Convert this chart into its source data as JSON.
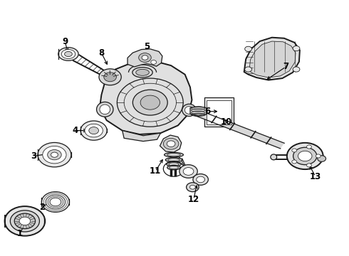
{
  "background": "#ffffff",
  "line_color": "#1a1a1a",
  "fig_width": 4.9,
  "fig_height": 3.6,
  "dpi": 100,
  "label_fontsize": 8.5,
  "lw_thick": 1.4,
  "lw_med": 0.9,
  "lw_thin": 0.55,
  "labels_info": [
    [
      1,
      0.055,
      0.085,
      0.075,
      0.135
    ],
    [
      2,
      0.12,
      0.19,
      0.148,
      0.215
    ],
    [
      3,
      0.095,
      0.39,
      0.145,
      0.4
    ],
    [
      4,
      0.215,
      0.49,
      0.255,
      0.49
    ],
    [
      5,
      0.42,
      0.82,
      0.42,
      0.76
    ],
    [
      6,
      0.595,
      0.565,
      0.63,
      0.565
    ],
    [
      7,
      0.82,
      0.74,
      0.76,
      0.685
    ],
    [
      8,
      0.29,
      0.795,
      0.31,
      0.74
    ],
    [
      9,
      0.185,
      0.84,
      0.195,
      0.79
    ],
    [
      10,
      0.65,
      0.525,
      0.64,
      0.54
    ],
    [
      11,
      0.445,
      0.33,
      0.47,
      0.385
    ],
    [
      12,
      0.555,
      0.22,
      0.565,
      0.285
    ],
    [
      13,
      0.905,
      0.31,
      0.885,
      0.36
    ]
  ]
}
